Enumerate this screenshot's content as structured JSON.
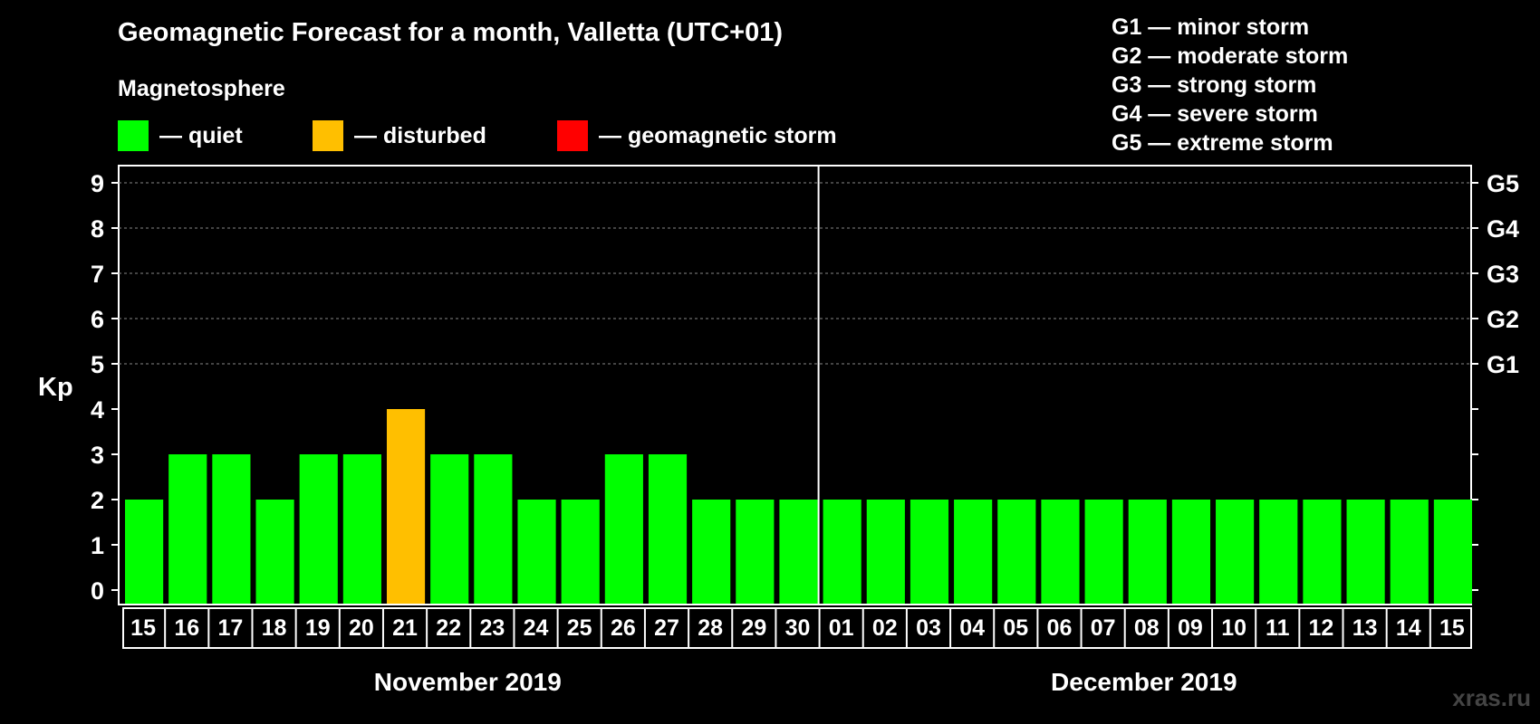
{
  "header": {
    "title": "Geomagnetic Forecast for a month, Valletta (UTC+01)",
    "subtitle": "Magnetosphere"
  },
  "legend": [
    {
      "label": "— quiet",
      "color": "#00ff00"
    },
    {
      "label": "— disturbed",
      "color": "#ffbf00"
    },
    {
      "label": "— geomagnetic storm",
      "color": "#ff0000"
    }
  ],
  "storm_scale": [
    "G1 — minor storm",
    "G2 — moderate storm",
    "G3 — strong storm",
    "G4 — severe storm",
    "G5 — extreme storm"
  ],
  "watermark": "xras.ru",
  "chart_data": {
    "type": "bar",
    "ylabel": "Kp",
    "ylim": [
      0,
      9
    ],
    "yticks": [
      "0",
      "1",
      "2",
      "3",
      "4",
      "5",
      "6",
      "7",
      "8",
      "9"
    ],
    "right_axis_labels": [
      {
        "value": 5,
        "label": "G1"
      },
      {
        "value": 6,
        "label": "G2"
      },
      {
        "value": 7,
        "label": "G3"
      },
      {
        "value": 8,
        "label": "G4"
      },
      {
        "value": 9,
        "label": "G5"
      }
    ],
    "grid": "dashed horizontal at 5-9",
    "categories": [
      "15",
      "16",
      "17",
      "18",
      "19",
      "20",
      "21",
      "22",
      "23",
      "24",
      "25",
      "26",
      "27",
      "28",
      "29",
      "30",
      "01",
      "02",
      "03",
      "04",
      "05",
      "06",
      "07",
      "08",
      "09",
      "10",
      "11",
      "12",
      "13",
      "14",
      "15"
    ],
    "values": [
      2,
      3,
      3,
      2,
      3,
      3,
      4,
      3,
      3,
      2,
      2,
      3,
      3,
      2,
      2,
      2,
      2,
      2,
      2,
      2,
      2,
      2,
      2,
      2,
      2,
      2,
      2,
      2,
      2,
      2,
      2
    ],
    "colors": [
      "#00ff00",
      "#00ff00",
      "#00ff00",
      "#00ff00",
      "#00ff00",
      "#00ff00",
      "#ffbf00",
      "#00ff00",
      "#00ff00",
      "#00ff00",
      "#00ff00",
      "#00ff00",
      "#00ff00",
      "#00ff00",
      "#00ff00",
      "#00ff00",
      "#00ff00",
      "#00ff00",
      "#00ff00",
      "#00ff00",
      "#00ff00",
      "#00ff00",
      "#00ff00",
      "#00ff00",
      "#00ff00",
      "#00ff00",
      "#00ff00",
      "#00ff00",
      "#00ff00",
      "#00ff00",
      "#00ff00"
    ],
    "months": [
      {
        "label": "November 2019",
        "from": 0,
        "to": 15
      },
      {
        "label": "December 2019",
        "from": 16,
        "to": 30
      }
    ]
  }
}
